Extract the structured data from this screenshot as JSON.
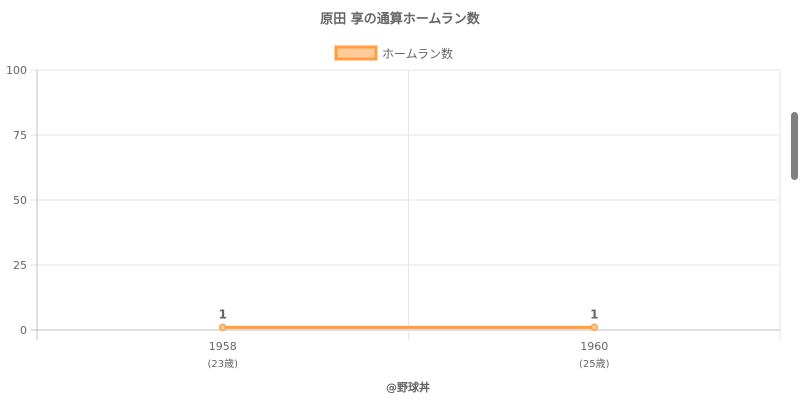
{
  "chart_data": {
    "type": "line",
    "title": "原田 享の通算ホームラン数",
    "categories": [
      "1958",
      "1960"
    ],
    "category_sublabels": [
      "(23歳)",
      "(25歳)"
    ],
    "series": [
      {
        "name": "ホームラン数",
        "values": [
          1,
          1
        ],
        "data_labels": [
          "1",
          "1"
        ],
        "color": "#ff9f40",
        "fill_color": "#ffcc99"
      }
    ],
    "ylim": [
      0,
      100
    ],
    "yticks": [
      "0",
      "25",
      "50",
      "75",
      "100"
    ],
    "grid": true,
    "legend_position": "top"
  },
  "credit": "@野球丼",
  "colors": {
    "text": "#666666",
    "grid": "#e6e6e6",
    "axis": "#bfbfbf"
  }
}
